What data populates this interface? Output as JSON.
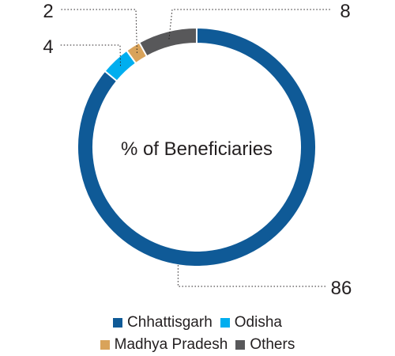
{
  "chart_data": {
    "type": "pie",
    "title": "% of Beneficiaries",
    "categories": [
      "Chhattisgarh",
      "Odisha",
      "Madhya Pradesh",
      "Others"
    ],
    "values": [
      86,
      4,
      2,
      8
    ],
    "value_labels": [
      "86",
      "4",
      "2",
      "8"
    ],
    "colors": [
      "#0f5a97",
      "#00aeef",
      "#d9a35a",
      "#58585a"
    ],
    "legend_position": "bottom"
  }
}
